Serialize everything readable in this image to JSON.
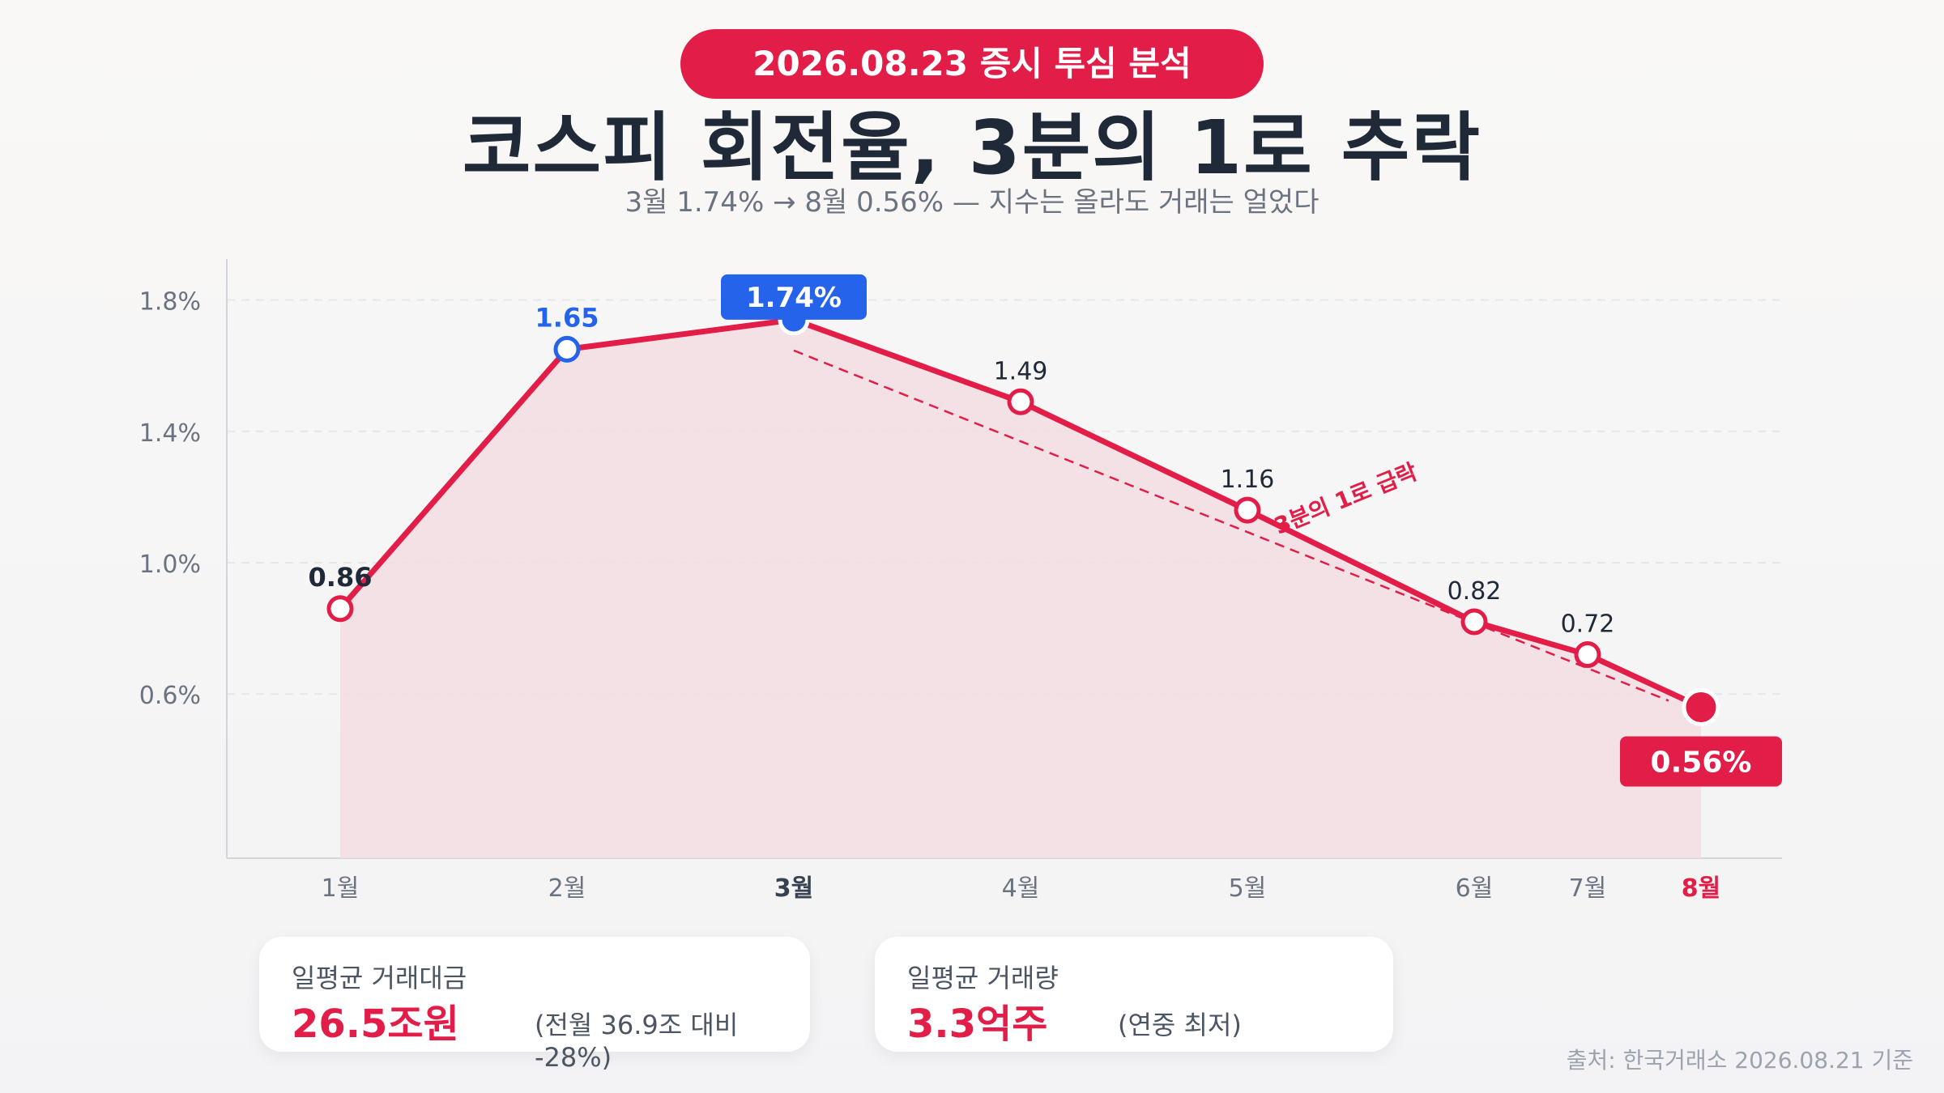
{
  "header": {
    "badge": "2026.08.23 증시 투심 분석",
    "title": "코스피 회전율, 3분의 1로 추락",
    "subtitle": "3월 1.74% → 8월 0.56% — 지수는 올라도 거래는 얼었다"
  },
  "chart_data": {
    "type": "line",
    "categories": [
      "1월",
      "2월",
      "3월",
      "4월",
      "5월",
      "6월",
      "7월",
      "8월"
    ],
    "values": [
      0.86,
      1.65,
      1.74,
      1.49,
      1.16,
      0.82,
      0.72,
      0.56
    ],
    "data_labels": [
      "0.86",
      "1.65",
      "1.74%",
      "1.49",
      "1.16",
      "0.82",
      "0.72",
      "0.56%"
    ],
    "y_ticks": [
      "1.8%",
      "1.4%",
      "1.0%",
      "0.6%"
    ],
    "y_tick_values": [
      1.8,
      1.4,
      1.0,
      0.6
    ],
    "ylim": [
      0.1,
      1.9
    ],
    "grid": true,
    "peak_index": 2,
    "latest_index": 7,
    "annotation": "3분의 1로 급락",
    "colors": {
      "line": "#e11d48",
      "peak": "#2563eb",
      "area": "#f3dde2",
      "grid": "#e5e7eb"
    }
  },
  "cards": [
    {
      "label": "일평균 거래대금",
      "value": "26.5조원",
      "note": "(전월 36.9조 대비 -28%)"
    },
    {
      "label": "일평균 거래량",
      "value": "3.3억주",
      "note": "(연중 최저)"
    }
  ],
  "source": "출처: 한국거래소 2026.08.21 기준"
}
